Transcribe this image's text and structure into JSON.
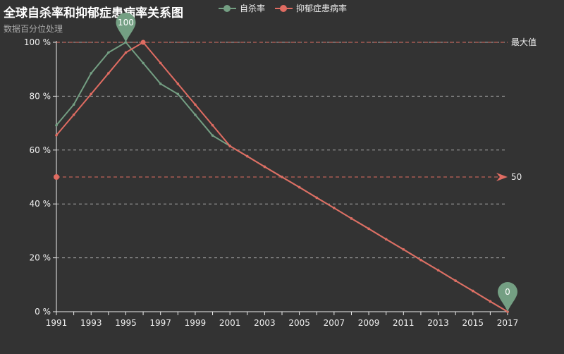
{
  "title": "全球自杀率和抑郁症患病率关系图",
  "subtitle": "数据百分位处理",
  "legend": [
    {
      "name": "自杀率",
      "color": "#749f83"
    },
    {
      "name": "抑郁症患病率",
      "color": "#e06c62"
    }
  ],
  "colors": {
    "background": "#333333",
    "axis": "#eeeeee",
    "grid": "#aaaaaa",
    "suicide": "#749f83",
    "depression": "#e06c62"
  },
  "chart_data": {
    "type": "line",
    "title": "全球自杀率和抑郁症患病率关系图",
    "subtitle": "数据百分位处理",
    "x": [
      1991,
      1992,
      1993,
      1994,
      1995,
      1996,
      1997,
      1998,
      1999,
      2000,
      2001,
      2002,
      2003,
      2004,
      2005,
      2006,
      2007,
      2008,
      2009,
      2010,
      2011,
      2012,
      2013,
      2014,
      2015,
      2016,
      2017
    ],
    "x_tick_labels": [
      "1991",
      "1993",
      "1995",
      "1997",
      "1999",
      "2001",
      "2003",
      "2005",
      "2007",
      "2009",
      "2011",
      "2013",
      "2015",
      "2017"
    ],
    "y_tick_labels": [
      "0 %",
      "20 %",
      "40 %",
      "60 %",
      "80 %",
      "100 %"
    ],
    "ylim": [
      0,
      100
    ],
    "series": [
      {
        "name": "自杀率",
        "values": [
          69.2,
          76.9,
          88.5,
          96.2,
          100,
          92.3,
          84.6,
          80.8,
          73.1,
          65.4,
          61.5,
          57.7,
          53.8,
          50.0,
          46.2,
          42.3,
          38.5,
          34.6,
          30.8,
          26.9,
          23.1,
          19.2,
          15.4,
          11.5,
          7.7,
          3.8,
          0
        ]
      },
      {
        "name": "抑郁症患病率",
        "values": [
          65.5,
          73.1,
          80.8,
          88.5,
          96.2,
          100,
          92.3,
          84.6,
          76.9,
          69.2,
          61.5,
          57.7,
          53.8,
          50.0,
          46.2,
          42.3,
          38.5,
          34.6,
          30.8,
          26.9,
          23.1,
          19.2,
          15.4,
          11.5,
          7.7,
          3.8,
          0
        ]
      }
    ],
    "mark_points": [
      {
        "series": "自杀率",
        "x": 1995,
        "y": 100,
        "label": "100"
      },
      {
        "series": "自杀率",
        "x": 2017,
        "y": 0,
        "label": "0"
      }
    ],
    "mark_lines": [
      {
        "label": "最大值",
        "y": 100,
        "color": "#e06c62",
        "style": "dashed"
      },
      {
        "label": "50",
        "y": 50,
        "color": "#e06c62",
        "style": "dashed-arrow"
      }
    ],
    "grid": true,
    "legend_position": "top-center"
  }
}
